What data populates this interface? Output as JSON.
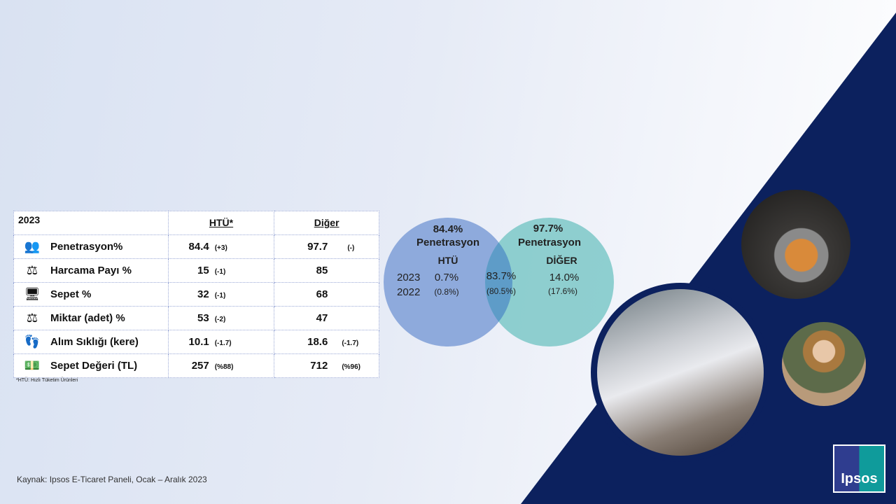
{
  "table": {
    "year": "2023",
    "col_htu": "HTÜ*",
    "col_diger": "Diğer",
    "rows": [
      {
        "icon": "people-icon",
        "label": "Penetrasyon%",
        "htu": "84.4",
        "htu_change": "(+3)",
        "diger": "97.7",
        "diger_change": "(-)"
      },
      {
        "icon": "scale-money-icon",
        "label": "Harcama Payı %",
        "htu": "15",
        "htu_change": "(-1)",
        "diger": "85",
        "diger_change": ""
      },
      {
        "icon": "monitor-basket-icon",
        "label": "Sepet %",
        "htu": "32",
        "htu_change": "(-1)",
        "diger": "68",
        "diger_change": ""
      },
      {
        "icon": "scale-icon",
        "label": "Miktar (adet) %",
        "htu": "53",
        "htu_change": "(-2)",
        "diger": "47",
        "diger_change": ""
      },
      {
        "icon": "footprints-icon",
        "label": "Alım Sıklığı (kere)",
        "htu": "10.1",
        "htu_change": "(-1.7)",
        "diger": "18.6",
        "diger_change": "(-1.7)"
      },
      {
        "icon": "money-icon",
        "label": "Sepet Değeri (TL)",
        "htu": "257",
        "htu_change": "(%88)",
        "diger": "712",
        "diger_change": "(%96)"
      }
    ],
    "footnote": "*HTÜ: Hızlı Tüketim Ürünleri"
  },
  "venn": {
    "left_pct": "84.4%",
    "left_sub": "Penetrasyon",
    "left_name": "HTÜ",
    "right_pct": "97.7%",
    "right_sub": "Penetrasyon",
    "right_name": "DİĞER",
    "year_2023": "2023",
    "year_2022": "2022",
    "htu_only_2023": "0.7%",
    "htu_only_2022": "(0.8%)",
    "both_2023": "83.7%",
    "both_2022": "(80.5%)",
    "diger_only_2023": "14.0%",
    "diger_only_2022": "(17.6%)",
    "left_color": "#8eaadc",
    "right_color": "#7cc8c8"
  },
  "source": "Kaynak: Ipsos E-Ticaret Paneli, Ocak – Aralık 2023",
  "logo": "Ipsos",
  "colors": {
    "navy": "#0c215e"
  }
}
